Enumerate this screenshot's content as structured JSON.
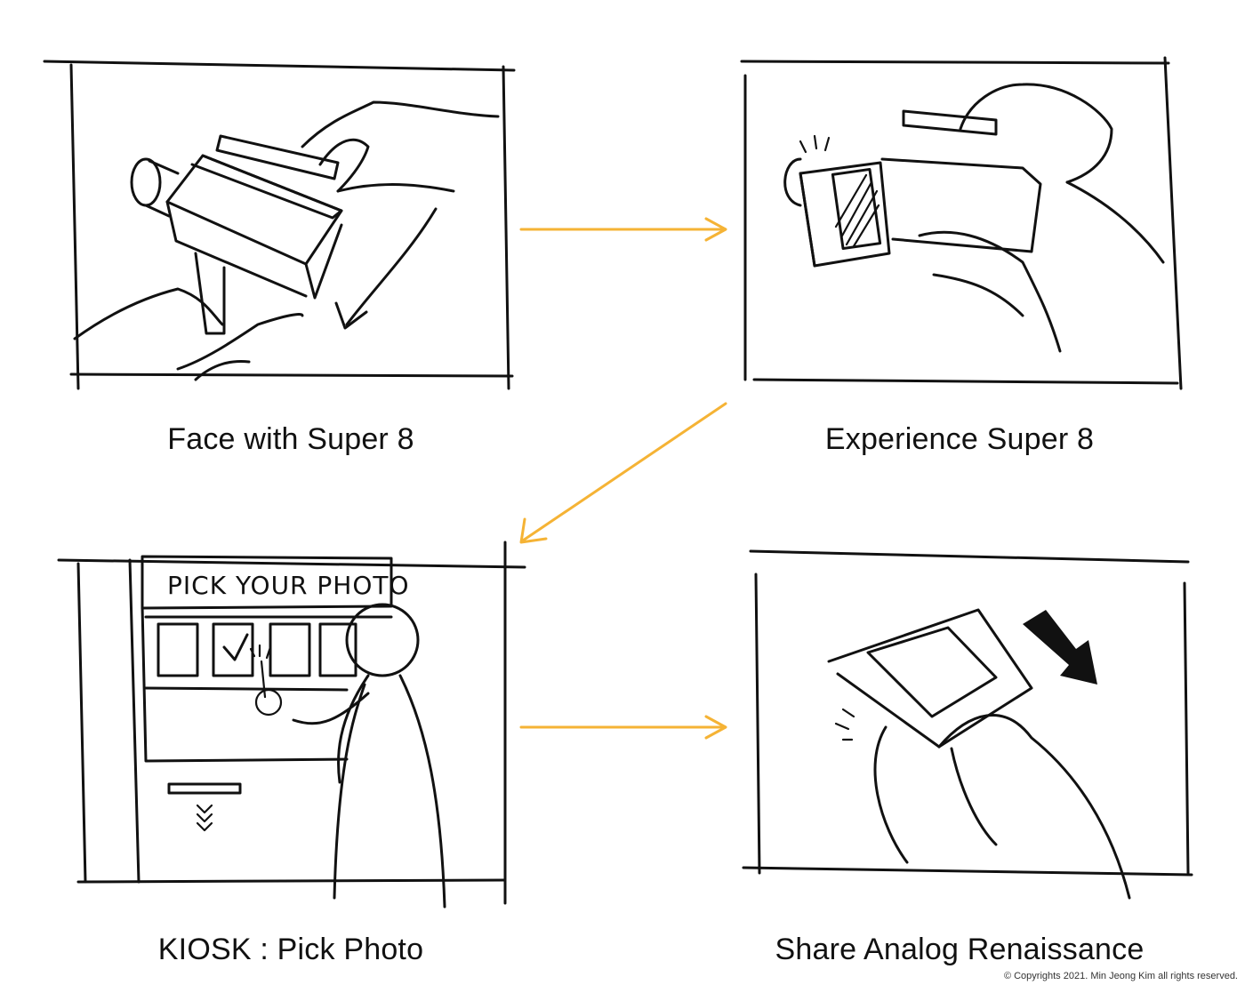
{
  "panels": [
    {
      "id": "face",
      "caption": "Face with Super 8"
    },
    {
      "id": "experience",
      "caption": "Experience Super 8"
    },
    {
      "id": "kiosk",
      "caption": "KIOSK : Pick Photo",
      "screen_text": "PICK YOUR PHOTO"
    },
    {
      "id": "share",
      "caption": "Share Analog Renaissance"
    }
  ],
  "accent_color": "#F5B335",
  "copyright": "© Copyrights 2021. Min Jeong Kim all rights reserved."
}
